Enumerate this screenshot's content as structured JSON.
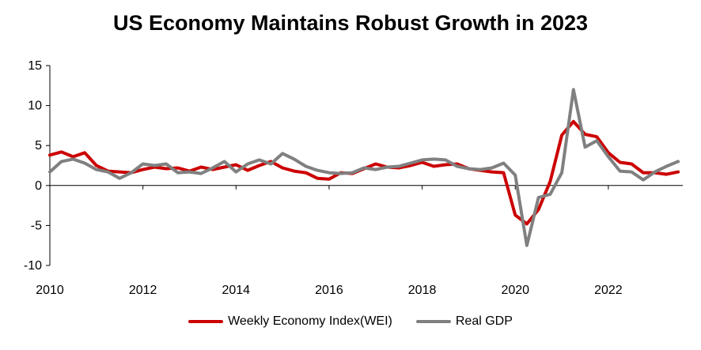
{
  "chart_data": {
    "type": "line",
    "title": "US Economy Maintains Robust Growth in 2023",
    "xlabel": "",
    "ylabel": "",
    "xlim": [
      2010,
      2023.6
    ],
    "ylim": [
      -10,
      15
    ],
    "yticks": [
      -10,
      -5,
      0,
      5,
      10,
      15
    ],
    "xticks": [
      2010,
      2012,
      2014,
      2016,
      2018,
      2020,
      2022
    ],
    "grid": false,
    "legend": "bottom",
    "series": [
      {
        "name": "Weekly Economy Index(WEI)",
        "color": "#cc0000",
        "x": [
          2010.0,
          2010.25,
          2010.5,
          2010.75,
          2011.0,
          2011.25,
          2011.5,
          2011.75,
          2012.0,
          2012.25,
          2012.5,
          2012.75,
          2013.0,
          2013.25,
          2013.5,
          2013.75,
          2014.0,
          2014.25,
          2014.5,
          2014.75,
          2015.0,
          2015.25,
          2015.5,
          2015.75,
          2016.0,
          2016.25,
          2016.5,
          2016.75,
          2017.0,
          2017.25,
          2017.5,
          2017.75,
          2018.0,
          2018.25,
          2018.5,
          2018.75,
          2019.0,
          2019.25,
          2019.5,
          2019.75,
          2020.0,
          2020.25,
          2020.5,
          2020.75,
          2021.0,
          2021.25,
          2021.5,
          2021.75,
          2022.0,
          2022.25,
          2022.5,
          2022.75,
          2023.0,
          2023.25,
          2023.5
        ],
        "y": [
          3.8,
          4.2,
          3.6,
          4.1,
          2.5,
          1.8,
          1.7,
          1.6,
          2.0,
          2.3,
          2.1,
          2.2,
          1.8,
          2.3,
          2.0,
          2.3,
          2.6,
          1.9,
          2.5,
          3.0,
          2.2,
          1.8,
          1.6,
          0.9,
          0.8,
          1.6,
          1.5,
          2.1,
          2.7,
          2.3,
          2.2,
          2.5,
          2.9,
          2.4,
          2.6,
          2.7,
          2.1,
          1.9,
          1.7,
          1.6,
          -3.7,
          -4.8,
          -3.0,
          0.5,
          6.3,
          8.0,
          6.4,
          6.1,
          4.1,
          2.9,
          2.7,
          1.6,
          1.6,
          1.4,
          1.7
        ]
      },
      {
        "name": "Real GDP",
        "color": "#808080",
        "x": [
          2010.0,
          2010.25,
          2010.5,
          2010.75,
          2011.0,
          2011.25,
          2011.5,
          2011.75,
          2012.0,
          2012.25,
          2012.5,
          2012.75,
          2013.0,
          2013.25,
          2013.5,
          2013.75,
          2014.0,
          2014.25,
          2014.5,
          2014.75,
          2015.0,
          2015.25,
          2015.5,
          2015.75,
          2016.0,
          2016.25,
          2016.5,
          2016.75,
          2017.0,
          2017.25,
          2017.5,
          2017.75,
          2018.0,
          2018.25,
          2018.5,
          2018.75,
          2019.0,
          2019.25,
          2019.5,
          2019.75,
          2020.0,
          2020.25,
          2020.5,
          2020.75,
          2021.0,
          2021.25,
          2021.5,
          2021.75,
          2022.0,
          2022.25,
          2022.5,
          2022.75,
          2023.0,
          2023.25,
          2023.5
        ],
        "y": [
          1.7,
          3.0,
          3.3,
          2.8,
          2.0,
          1.7,
          0.9,
          1.6,
          2.7,
          2.5,
          2.7,
          1.6,
          1.7,
          1.5,
          2.2,
          3.0,
          1.7,
          2.7,
          3.2,
          2.7,
          4.0,
          3.3,
          2.4,
          1.9,
          1.6,
          1.5,
          1.6,
          2.2,
          2.0,
          2.3,
          2.4,
          2.8,
          3.2,
          3.3,
          3.2,
          2.4,
          2.1,
          2.0,
          2.2,
          2.8,
          1.3,
          -7.5,
          -1.5,
          -1.1,
          1.6,
          12.0,
          4.8,
          5.6,
          3.6,
          1.8,
          1.7,
          0.7,
          1.7,
          2.4,
          3.0
        ]
      }
    ]
  }
}
